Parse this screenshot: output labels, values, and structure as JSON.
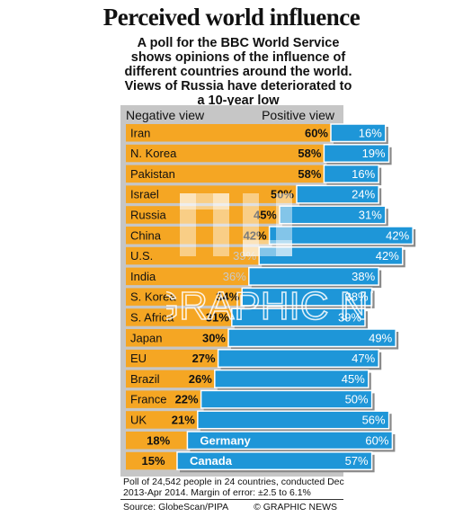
{
  "title": "Perceived world influence",
  "subtitle": "A poll for the BBC World Service shows opinions of the influence of different countries around the world. Views of Russia have deteriorated to a 10-year low",
  "colors": {
    "negative": "#f5a623",
    "positive": "#1e96d8",
    "panel": "#c6c6c6"
  },
  "chart_data": {
    "type": "bar",
    "legend": {
      "negative": "Negative view",
      "positive": "Positive view"
    },
    "categories": [
      "Iran",
      "N. Korea",
      "Pakistan",
      "Israel",
      "Russia",
      "China",
      "U.S.",
      "India",
      "S. Korea",
      "S. Africa",
      "Japan",
      "EU",
      "Brazil",
      "France",
      "UK",
      "Germany",
      "Canada"
    ],
    "series": [
      {
        "name": "Negative view",
        "values": [
          60,
          58,
          58,
          50,
          45,
          42,
          39,
          36,
          34,
          31,
          30,
          27,
          26,
          22,
          21,
          18,
          15
        ]
      },
      {
        "name": "Positive view",
        "values": [
          16,
          19,
          16,
          24,
          31,
          42,
          42,
          38,
          38,
          39,
          49,
          47,
          45,
          50,
          56,
          60,
          57
        ]
      }
    ],
    "unit": "%",
    "axis_range": [
      0,
      100
    ]
  },
  "footnote": "Poll of 24,542 people in 24 countries, conducted Dec 2013-Apr 2014. Margin of error: ±2.5 to 6.1%",
  "source": "Source: GlobeScan/PIPA",
  "credit": "© GRAPHIC NEWS",
  "watermark": "GRAPHIC NEWS"
}
